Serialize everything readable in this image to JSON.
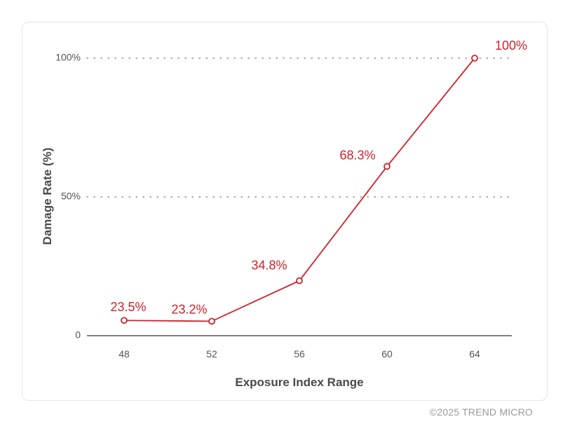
{
  "chart_data": {
    "type": "line",
    "title": "",
    "xlabel": "Exposure Index Range",
    "ylabel": "Damage Rate (%)",
    "x": [
      48,
      52,
      56,
      60,
      64
    ],
    "values": [
      23.5,
      23.2,
      34.8,
      68.3,
      100
    ],
    "data_labels": [
      "23.5%",
      "23.2%",
      "34.8%",
      "68.3%",
      "100%"
    ],
    "y_ticks": [
      {
        "value": 0,
        "label": "0"
      },
      {
        "value": 50,
        "label": "50%"
      },
      {
        "value": 100,
        "label": "100%"
      }
    ],
    "x_tick_labels": [
      "48",
      "52",
      "56",
      "60",
      "64"
    ],
    "ylim": [
      0,
      100
    ],
    "grid": "horizontal dotted",
    "line_color": "#d0202a"
  },
  "footer": {
    "credit": "©2025 TREND MICRO"
  }
}
